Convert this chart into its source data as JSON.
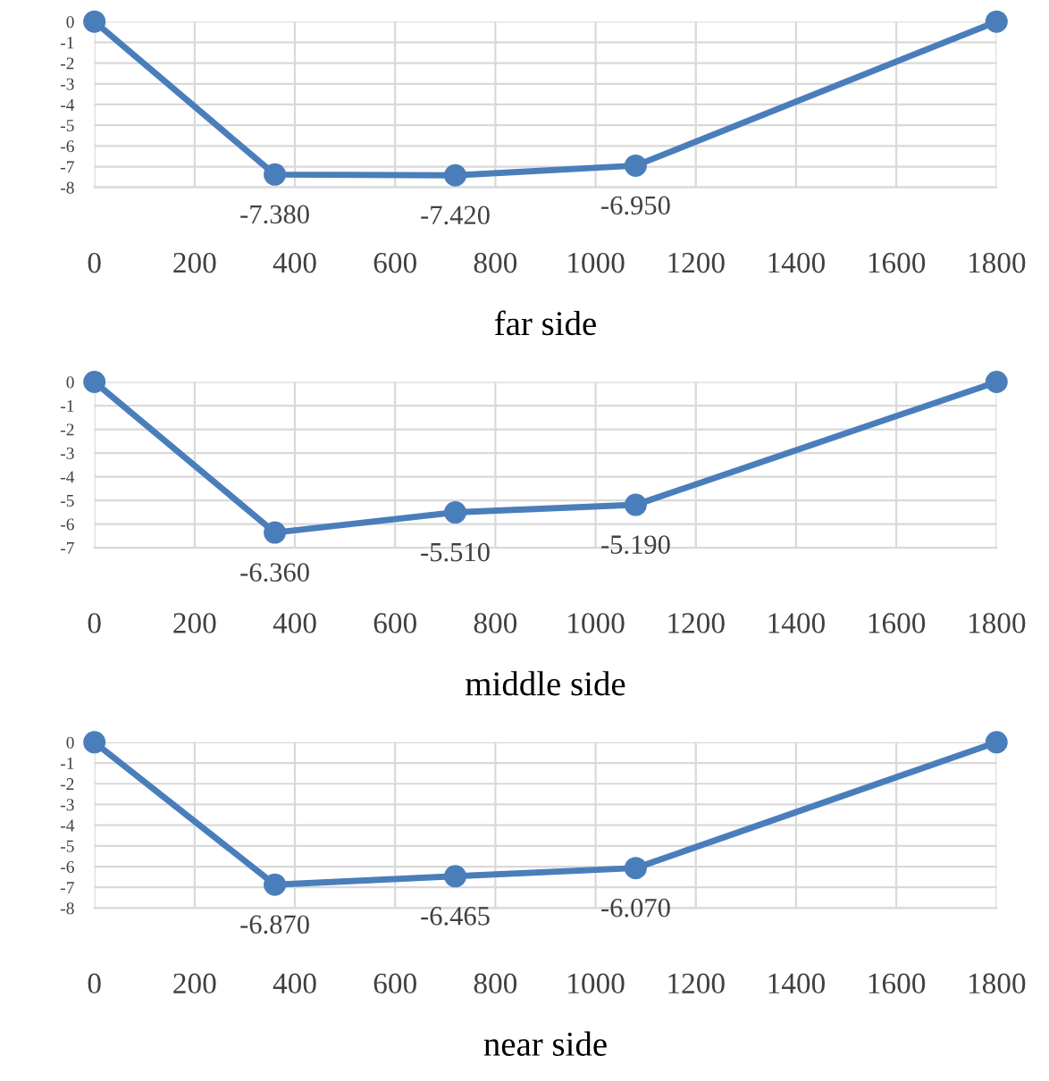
{
  "chart_data": [
    {
      "type": "line",
      "title": "far side",
      "x": [
        0,
        360,
        720,
        1080,
        1800
      ],
      "series": [
        {
          "color": "#4a7ebb",
          "values": [
            0,
            -7.38,
            -7.42,
            -6.95,
            0
          ],
          "value_labels": [
            null,
            "-7.380",
            "-7.420",
            "-6.950",
            null
          ]
        }
      ],
      "xlim": [
        0,
        1800
      ],
      "xticks": [
        0,
        200,
        400,
        600,
        800,
        1000,
        1200,
        1400,
        1600,
        1800
      ],
      "ylim": [
        -8,
        0
      ],
      "yticks": [
        0,
        -1,
        -2,
        -3,
        -4,
        -5,
        -6,
        -7,
        -8
      ],
      "grid": true,
      "marker": "circle",
      "line_style": "solid"
    },
    {
      "type": "line",
      "title": "middle side",
      "x": [
        0,
        360,
        720,
        1080,
        1800
      ],
      "series": [
        {
          "color": "#4a7ebb",
          "values": [
            0,
            -6.36,
            -5.51,
            -5.19,
            0
          ],
          "value_labels": [
            null,
            "-6.360",
            "-5.510",
            "-5.190",
            null
          ]
        }
      ],
      "xlim": [
        0,
        1800
      ],
      "xticks": [
        0,
        200,
        400,
        600,
        800,
        1000,
        1200,
        1400,
        1600,
        1800
      ],
      "ylim": [
        -7,
        0
      ],
      "yticks": [
        0,
        -1,
        -2,
        -3,
        -4,
        -5,
        -6,
        -7
      ],
      "grid": true,
      "marker": "circle",
      "line_style": "solid"
    },
    {
      "type": "line",
      "title": "near side",
      "x": [
        0,
        360,
        720,
        1080,
        1800
      ],
      "series": [
        {
          "color": "#4a7ebb",
          "values": [
            0,
            -6.87,
            -6.465,
            -6.07,
            0
          ],
          "value_labels": [
            null,
            "-6.870",
            "-6.465",
            "-6.070",
            null
          ]
        }
      ],
      "xlim": [
        0,
        1800
      ],
      "xticks": [
        0,
        200,
        400,
        600,
        800,
        1000,
        1200,
        1400,
        1600,
        1800
      ],
      "ylim": [
        -8,
        0
      ],
      "yticks": [
        0,
        -1,
        -2,
        -3,
        -4,
        -5,
        -6,
        -7,
        -8
      ],
      "grid": true,
      "marker": "circle",
      "line_style": "solid"
    }
  ]
}
